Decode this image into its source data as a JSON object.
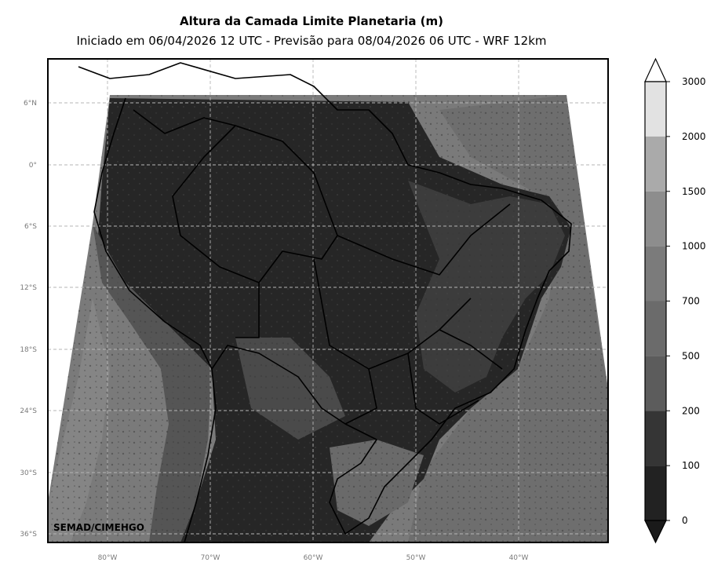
{
  "map": {
    "title": "Altura da Camada Limite Planetaria (m)",
    "subtitle": "Iniciado em 06/04/2026 12 UTC - Previsão para 08/04/2026 06 UTC - WRF 12km",
    "credit": "SEMAD/CIMEHGO",
    "lat_ticks": [
      "6°N",
      "0°",
      "6°S",
      "12°S",
      "18°S",
      "24°S",
      "30°S",
      "36°S"
    ],
    "lon_ticks": [
      "80°W",
      "70°W",
      "60°W",
      "50°W",
      "40°W"
    ],
    "colorbar": {
      "labels": [
        "3000",
        "2000",
        "1500",
        "1000",
        "700",
        "500",
        "200",
        "100",
        "0"
      ],
      "colors_top_to_bottom": [
        "#e2e2e2",
        "#aaaaaa",
        "#8d8d8d",
        "#7b7b7b",
        "#6b6b6b",
        "#5c5c5c",
        "#353535",
        "#222222"
      ],
      "over_color": "#ffffff",
      "under_color": "#1a1a1a"
    }
  }
}
